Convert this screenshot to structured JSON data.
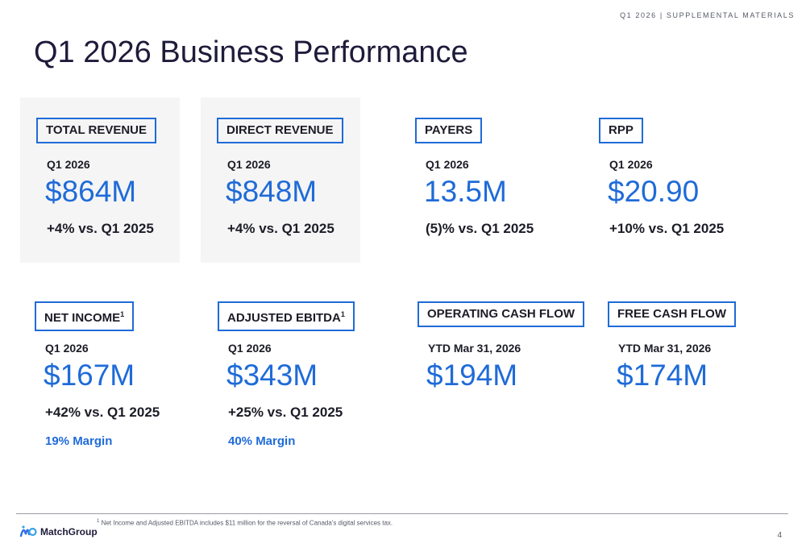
{
  "header": {
    "tag": "Q1 2026 | SUPPLEMENTAL MATERIALS",
    "title": "Q1 2026 Business Performance"
  },
  "colors": {
    "accent": "#1f6bd8",
    "text": "#1c1c28",
    "card_bg": "#f5f5f5"
  },
  "metrics_row1": [
    {
      "label": "TOTAL REVENUE",
      "period": "Q1 2026",
      "value": "$864M",
      "change": "+4% vs. Q1 2025"
    },
    {
      "label": "DIRECT REVENUE",
      "period": "Q1 2026",
      "value": "$848M",
      "change": "+4% vs. Q1 2025"
    },
    {
      "label": "PAYERS",
      "period": "Q1 2026",
      "value": "13.5M",
      "change": "(5)% vs. Q1 2025"
    },
    {
      "label": "RPP",
      "period": "Q1 2026",
      "value": "$20.90",
      "change": "+10% vs. Q1 2025"
    }
  ],
  "metrics_row2": [
    {
      "label": "NET INCOME",
      "sup": "1",
      "period": "Q1 2026",
      "value": "$167M",
      "change": "+42% vs. Q1 2025",
      "margin": "19% Margin"
    },
    {
      "label": "ADJUSTED EBITDA",
      "sup": "1",
      "period": "Q1 2026",
      "value": "$343M",
      "change": "+25% vs. Q1 2025",
      "margin": "40% Margin"
    },
    {
      "label": "OPERATING CASH FLOW",
      "period": "YTD Mar 31, 2026",
      "value": "$194M"
    },
    {
      "label": "FREE CASH FLOW",
      "period": "YTD Mar 31, 2026",
      "value": "$174M"
    }
  ],
  "footer": {
    "logo_text": "MatchGroup",
    "logo_icon": "match-group-logo-icon",
    "footnote_sup": "1",
    "footnote": "Net Income and Adjusted EBITDA includes $11 million for the reversal of Canada's digital services tax.",
    "page_number": "4"
  }
}
